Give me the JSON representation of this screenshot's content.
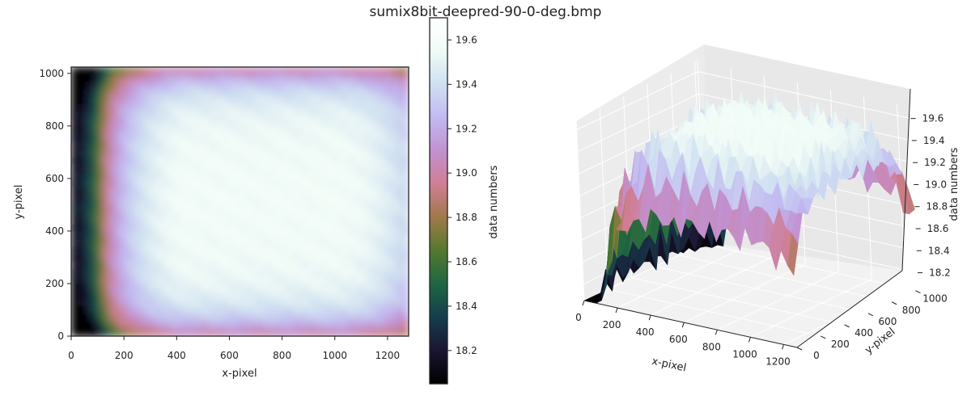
{
  "figure": {
    "title": "sumix8bit-deepred-90-0-deg.bmp"
  },
  "chart_data": [
    {
      "type": "heatmap",
      "xlabel": "x-pixel",
      "ylabel": "y-pixel",
      "xlim": [
        0,
        1280
      ],
      "ylim": [
        0,
        1024
      ],
      "xticks": [
        "0",
        "200",
        "400",
        "600",
        "800",
        "1000",
        "1200"
      ],
      "yticks": [
        "0",
        "200",
        "400",
        "600",
        "800",
        "1000"
      ],
      "colormap": "cubehelix",
      "value_range": [
        18.05,
        19.7
      ],
      "colorbar": {
        "label": "data numbers",
        "ticks": [
          "18.2",
          "18.4",
          "18.6",
          "18.8",
          "19.0",
          "19.2",
          "19.4",
          "19.6"
        ]
      },
      "grid": false
    },
    {
      "type": "surface",
      "xlabel": "x-pixel",
      "ylabel": "y-pixel",
      "zlabel": "data numbers",
      "xticks": [
        "0",
        "200",
        "400",
        "600",
        "800",
        "1000",
        "1200"
      ],
      "yticks": [
        "0",
        "200",
        "400",
        "600",
        "800",
        "1000"
      ],
      "zticks": [
        "18.2",
        "18.4",
        "18.6",
        "18.8",
        "19.0",
        "19.2",
        "19.4",
        "19.6"
      ],
      "zlim": [
        18.05,
        19.7
      ],
      "grid": true
    }
  ],
  "colors": {
    "stops": [
      "#000000",
      "#1a1530",
      "#163d4e",
      "#1f6642",
      "#54792f",
      "#a07949",
      "#d07e93",
      "#c291d0",
      "#c2b9f1",
      "#cfe0f1",
      "#f0fbf6",
      "#ffffff"
    ]
  }
}
